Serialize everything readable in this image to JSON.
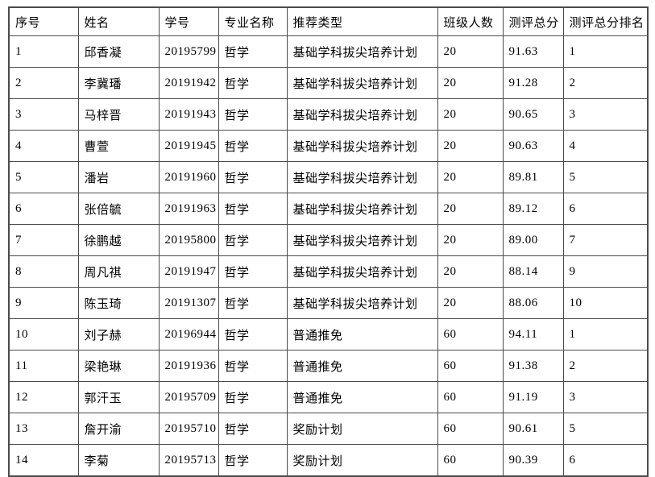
{
  "page": {
    "background_color": "#ffffff",
    "table_border_color": "#4b4b4b"
  },
  "table": {
    "columns": [
      "序号",
      "姓名",
      "学号",
      "专业名称",
      "推荐类型",
      "班级人数",
      "测评总分",
      "测评总分排名"
    ],
    "column_keys": [
      "index",
      "name",
      "student-id",
      "major",
      "recommend-type",
      "class-size",
      "total-score",
      "score-rank"
    ],
    "rows": [
      [
        "1",
        "邱香凝",
        "20195799",
        "哲学",
        "基础学科拔尖培养计划",
        "20",
        "91.63",
        "1"
      ],
      [
        "2",
        "李冀璠",
        "20191942",
        "哲学",
        "基础学科拔尖培养计划",
        "20",
        "91.28",
        "2"
      ],
      [
        "3",
        "马梓晋",
        "20191943",
        "哲学",
        "基础学科拔尖培养计划",
        "20",
        "90.65",
        "3"
      ],
      [
        "4",
        "曹萱",
        "20191945",
        "哲学",
        "基础学科拔尖培养计划",
        "20",
        "90.63",
        "4"
      ],
      [
        "5",
        "潘岩",
        "20191960",
        "哲学",
        "基础学科拔尖培养计划",
        "20",
        "89.81",
        "5"
      ],
      [
        "6",
        "张倍毓",
        "20191963",
        "哲学",
        "基础学科拔尖培养计划",
        "20",
        "89.12",
        "6"
      ],
      [
        "7",
        "徐鹏越",
        "20195800",
        "哲学",
        "基础学科拔尖培养计划",
        "20",
        "89.00",
        "7"
      ],
      [
        "8",
        "周凡祺",
        "20191947",
        "哲学",
        "基础学科拔尖培养计划",
        "20",
        "88.14",
        "9"
      ],
      [
        "9",
        "陈玉琦",
        "20191307",
        "哲学",
        "基础学科拔尖培养计划",
        "20",
        "88.06",
        "10"
      ],
      [
        "10",
        "刘子赫",
        "20196944",
        "哲学",
        "普通推免",
        "60",
        "94.11",
        "1"
      ],
      [
        "11",
        "梁艳琳",
        "20191936",
        "哲学",
        "普通推免",
        "60",
        "91.38",
        "2"
      ],
      [
        "12",
        "郭汗玉",
        "20195709",
        "哲学",
        "普通推免",
        "60",
        "91.19",
        "3"
      ],
      [
        "13",
        "詹开渝",
        "20195710",
        "哲学",
        "奖励计划",
        "60",
        "90.61",
        "5"
      ],
      [
        "14",
        "李菊",
        "20195713",
        "哲学",
        "奖励计划",
        "60",
        "90.39",
        "6"
      ]
    ]
  }
}
